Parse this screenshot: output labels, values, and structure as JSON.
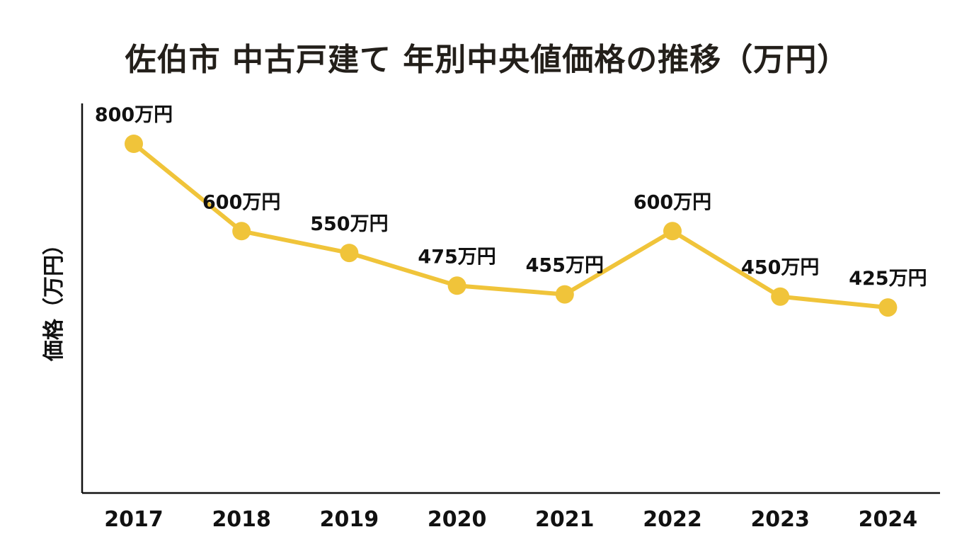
{
  "chart_data": {
    "type": "line",
    "title": "佐伯市 中古戸建て 年別中央値価格の推移（万円）",
    "xlabel": "",
    "ylabel": "価格（万円）",
    "categories": [
      "2017",
      "2018",
      "2019",
      "2020",
      "2021",
      "2022",
      "2023",
      "2024"
    ],
    "series": [
      {
        "values": [
          800,
          600,
          550,
          475,
          455,
          600,
          450,
          425
        ],
        "labels": [
          "800万円",
          "600万円",
          "550万円",
          "475万円",
          "455万円",
          "600万円",
          "450万円",
          "425万円"
        ],
        "color": "#f0c43a"
      }
    ],
    "ylim": [
      0,
      850
    ],
    "y_ticks_shown": false,
    "grid": false,
    "legend": "none"
  }
}
